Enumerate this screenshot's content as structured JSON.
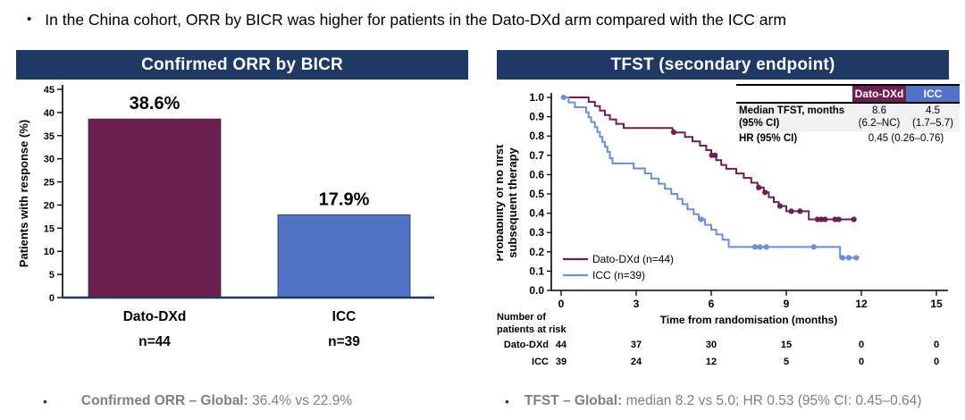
{
  "slide": {
    "top_bullet": "In the China cohort, ORR by BICR was higher for patients in the Dato-DXd arm compared with the ICC arm",
    "footer_bullets": [
      {
        "bold": "Confirmed ORR – Global:",
        "rest": " 36.4% vs 22.9%"
      },
      {
        "bold": "TFST – Global:",
        "rest": " median 8.2 vs 5.0; HR 0.53 (95% CI: 0.45–0.64)"
      }
    ]
  },
  "colors": {
    "header_navy": "#1F3864",
    "dato_maroon": "#6C2052",
    "icc_blue": "#4F74C6",
    "icc_line_blue": "#6A8ED8",
    "footer_gray": "#7F7F7F",
    "table_shade": "#F1F1F2"
  },
  "chart_data": [
    {
      "type": "bar",
      "title": "Confirmed ORR by BICR",
      "categories": [
        "Dato-DXd",
        "ICC"
      ],
      "n_labels": [
        "n=44",
        "n=39"
      ],
      "values": [
        38.6,
        17.9
      ],
      "value_labels": [
        "38.6%",
        "17.9%"
      ],
      "bar_colors": [
        "#6C2052",
        "#4F74C6"
      ],
      "ylabel": "Patients with response (%)",
      "ylim": [
        0,
        45
      ],
      "yticks": [
        0,
        5,
        10,
        15,
        20,
        25,
        30,
        35,
        40,
        45
      ],
      "grid": false
    },
    {
      "type": "line",
      "subtype": "kaplan_meier_step",
      "title": "TFST (secondary endpoint)",
      "xlabel": "Time from randomisation (months)",
      "ylabel": "Probability of no first subsequent therapy",
      "ylabel_lines": [
        "Probability of no first",
        "subsequent therapy"
      ],
      "xlim": [
        0,
        15
      ],
      "xticks": [
        0,
        3,
        6,
        9,
        12,
        15
      ],
      "ylim": [
        0,
        1.0
      ],
      "yticks": [
        "1.0",
        "0.9",
        "0.8",
        "0.7",
        "0.6",
        "0.5",
        "0.4",
        "0.3",
        "0.2",
        "0.1",
        "0.0"
      ],
      "legend_position": "lower-left-inside",
      "series": [
        {
          "name": "Dato-DXd (n=44)",
          "color": "#6C2052",
          "steps": [
            [
              0,
              1.0
            ],
            [
              1.1,
              0.977
            ],
            [
              1.35,
              0.955
            ],
            [
              1.55,
              0.932
            ],
            [
              1.75,
              0.909
            ],
            [
              1.95,
              0.886
            ],
            [
              2.2,
              0.863
            ],
            [
              2.5,
              0.841
            ],
            [
              4.45,
              0.818
            ],
            [
              4.95,
              0.795
            ],
            [
              5.25,
              0.772
            ],
            [
              5.55,
              0.75
            ],
            [
              5.8,
              0.727
            ],
            [
              6.0,
              0.7
            ],
            [
              6.2,
              0.675
            ],
            [
              6.4,
              0.65
            ],
            [
              6.6,
              0.63
            ],
            [
              7.0,
              0.606
            ],
            [
              7.3,
              0.583
            ],
            [
              7.6,
              0.558
            ],
            [
              7.85,
              0.533
            ],
            [
              8.1,
              0.508
            ],
            [
              8.3,
              0.483
            ],
            [
              8.5,
              0.458
            ],
            [
              8.7,
              0.437
            ],
            [
              9.0,
              0.41
            ],
            [
              9.9,
              0.368
            ],
            [
              11.7,
              0.368
            ]
          ],
          "censors": [
            [
              4.5,
              0.82
            ],
            [
              6.02,
              0.7
            ],
            [
              6.15,
              0.7
            ],
            [
              7.9,
              0.533
            ],
            [
              8.15,
              0.508
            ],
            [
              8.75,
              0.437
            ],
            [
              9.2,
              0.41
            ],
            [
              9.55,
              0.41
            ],
            [
              10.25,
              0.368
            ],
            [
              10.4,
              0.368
            ],
            [
              10.55,
              0.368
            ],
            [
              10.95,
              0.368
            ],
            [
              11.1,
              0.368
            ],
            [
              11.7,
              0.368
            ]
          ]
        },
        {
          "name": "ICC (n=39)",
          "color": "#6A8ED8",
          "steps": [
            [
              0,
              1.0
            ],
            [
              0.3,
              0.974
            ],
            [
              0.55,
              0.949
            ],
            [
              1.0,
              0.923
            ],
            [
              1.1,
              0.897
            ],
            [
              1.2,
              0.872
            ],
            [
              1.35,
              0.846
            ],
            [
              1.45,
              0.821
            ],
            [
              1.55,
              0.795
            ],
            [
              1.65,
              0.769
            ],
            [
              1.75,
              0.744
            ],
            [
              1.85,
              0.718
            ],
            [
              1.95,
              0.685
            ],
            [
              2.05,
              0.658
            ],
            [
              2.9,
              0.632
            ],
            [
              3.35,
              0.606
            ],
            [
              3.6,
              0.58
            ],
            [
              3.9,
              0.553
            ],
            [
              4.15,
              0.527
            ],
            [
              4.4,
              0.5
            ],
            [
              4.65,
              0.474
            ],
            [
              4.85,
              0.447
            ],
            [
              5.05,
              0.42
            ],
            [
              5.3,
              0.395
            ],
            [
              5.5,
              0.368
            ],
            [
              5.75,
              0.34
            ],
            [
              6.0,
              0.315
            ],
            [
              6.2,
              0.29
            ],
            [
              6.45,
              0.263
            ],
            [
              6.7,
              0.225
            ],
            [
              11.15,
              0.169
            ],
            [
              11.9,
              0.169
            ]
          ],
          "censors": [
            [
              0.1,
              1.0
            ],
            [
              5.6,
              0.368
            ],
            [
              7.75,
              0.225
            ],
            [
              7.95,
              0.225
            ],
            [
              8.2,
              0.225
            ],
            [
              10.1,
              0.225
            ],
            [
              11.25,
              0.169
            ],
            [
              11.5,
              0.169
            ],
            [
              11.8,
              0.169
            ]
          ]
        }
      ],
      "at_risk": {
        "label_lines": [
          "Number of",
          "patients at risk"
        ],
        "times": [
          0,
          3,
          6,
          9,
          12,
          15
        ],
        "rows": [
          {
            "name": "Dato-DXd",
            "counts": [
              44,
              37,
              30,
              15,
              0,
              0
            ]
          },
          {
            "name": "ICC",
            "counts": [
              39,
              24,
              12,
              5,
              0,
              0
            ]
          }
        ]
      },
      "inset_table": {
        "header": [
          "Dato-DXd",
          "ICC"
        ],
        "rows": [
          {
            "label_lines": [
              "Median TFST, months",
              "(95% CI)"
            ],
            "values": [
              [
                "8.6",
                "(6.2–NC)"
              ],
              [
                "4.5",
                "(1.7–5.7)"
              ]
            ]
          },
          {
            "label_lines": [
              "HR (95% CI)"
            ],
            "span_value": "0.45 (0.26–0.76)"
          }
        ]
      }
    }
  ]
}
